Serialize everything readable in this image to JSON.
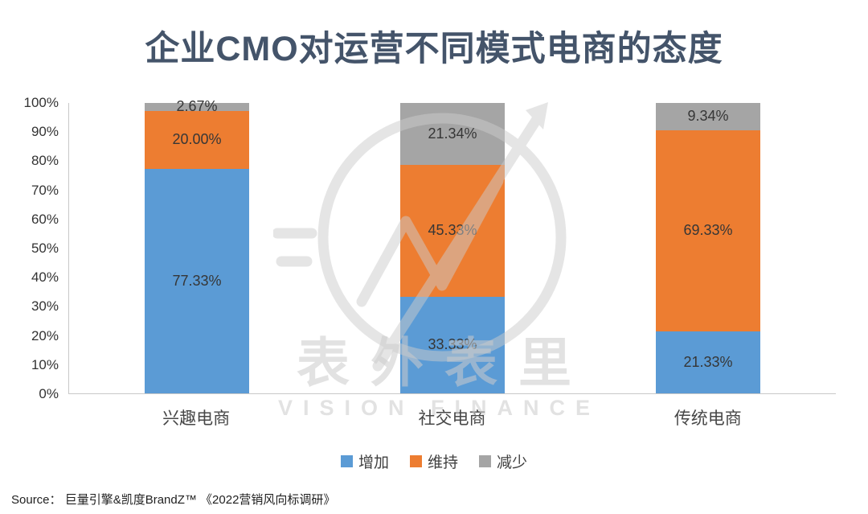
{
  "title": "企业CMO对运营不同模式电商的态度",
  "source": "Source：  巨量引擎&凯度BrandZ™ 《2022营销风向标调研》",
  "watermark": {
    "cn": "表外表里",
    "en": "VISION FINANCE"
  },
  "colors": {
    "increase": "#5B9BD5",
    "maintain": "#ED7D31",
    "decrease": "#A5A5A5",
    "title": "#44546A",
    "axis": "#C8C8C8"
  },
  "chart_data": {
    "type": "bar",
    "stacked": true,
    "title": "企业CMO对运营不同模式电商的态度",
    "categories": [
      "兴趣电商",
      "社交电商",
      "传统电商"
    ],
    "series": [
      {
        "name": "增加",
        "color": "#5B9BD5",
        "values": [
          77.33,
          33.33,
          21.33
        ],
        "labels": [
          "77.33%",
          "33.33%",
          "21.33%"
        ]
      },
      {
        "name": "维持",
        "color": "#ED7D31",
        "values": [
          20.0,
          45.33,
          69.33
        ],
        "labels": [
          "20.00%",
          "45.33%",
          "69.33%"
        ]
      },
      {
        "name": "减少",
        "color": "#A5A5A5",
        "values": [
          2.67,
          21.34,
          9.34
        ],
        "labels": [
          "2.67%",
          "21.34%",
          "9.34%"
        ]
      }
    ],
    "ylim": [
      0,
      100
    ],
    "ytick_step": 10,
    "ytick_labels": [
      "0%",
      "10%",
      "20%",
      "30%",
      "40%",
      "50%",
      "60%",
      "70%",
      "80%",
      "90%",
      "100%"
    ],
    "legend": [
      "增加",
      "维持",
      "减少"
    ],
    "legend_position": "bottom",
    "grid": false
  }
}
